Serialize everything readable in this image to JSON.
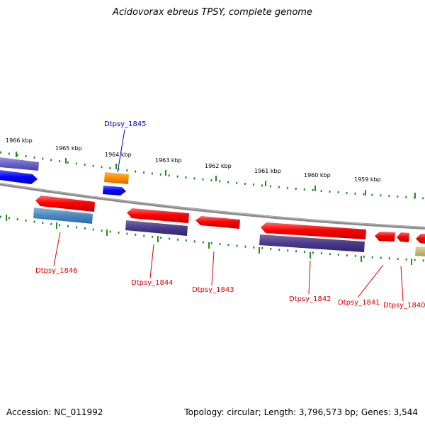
{
  "title": "Acidovorax ebreus TPSY, complete genome",
  "footer": {
    "accession": "Accession: NC_011992",
    "summary": "Topology: circular; Length: 3,796,573 bp; Genes: 3,544"
  },
  "colors": {
    "forward_gene": "#0000ff",
    "reverse_gene": "#ff0000",
    "orange_feature": "#ff8c00",
    "backbone": "#888888",
    "tick": "#228b22"
  },
  "scale": {
    "ticks": [
      "1966 kbp",
      "1965 kbp",
      "1964 kbp",
      "1963 kbp",
      "1962 kbp",
      "1961 kbp",
      "1960 kbp",
      "1959 kbp"
    ]
  },
  "genes": {
    "dtpsy_1845": "Dtpsy_1845",
    "dtpsy_1846": "Dtpsy_1846",
    "dtpsy_1844": "Dtpsy_1844",
    "dtpsy_1843": "Dtpsy_1843",
    "dtpsy_1842": "Dtpsy_1842",
    "dtpsy_1841": "Dtpsy_1841",
    "dtpsy_1840": "Dtpsy_1840"
  }
}
